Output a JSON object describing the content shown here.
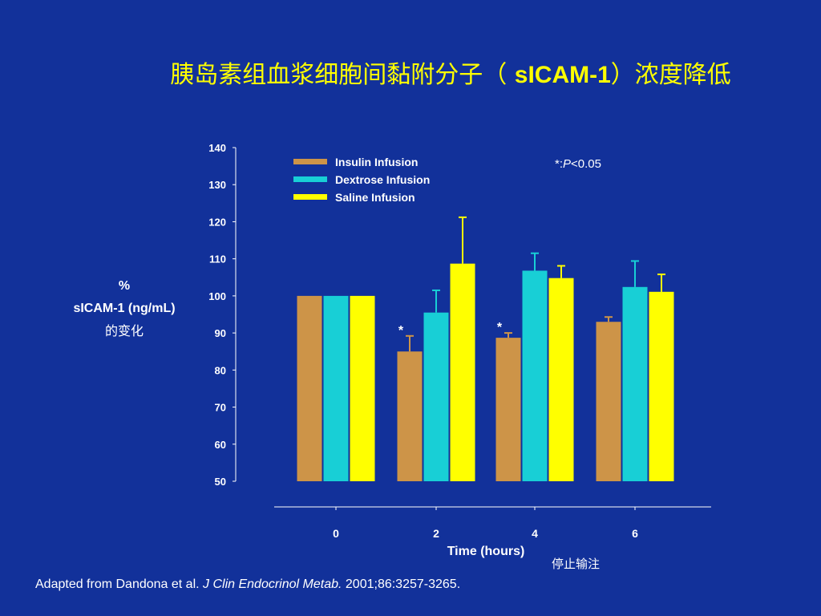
{
  "slide": {
    "title_cn_prefix": "胰岛素组血浆细胞间黏附分子（ ",
    "title_bold": "sICAM-1",
    "title_cn_suffix": "）浓度降低",
    "ylabel_line1": "%",
    "ylabel_line2": "sICAM-1 (ng/mL)",
    "ylabel_line3": "的变化",
    "pvalue_prefix": "*:",
    "pvalue_p": "P",
    "pvalue_rest": "<0.05",
    "stop_label": "停止输注",
    "footnote_pre": "Adapted from Dandona et al. ",
    "footnote_journal": "J Clin Endocrinol Metab.",
    "footnote_post": " 2001;86:3257-3265."
  },
  "colors": {
    "background": "#12319a",
    "title": "#ffff00",
    "insulin": "#cd9448",
    "dextrose": "#18cfd6",
    "saline": "#ffff00"
  },
  "chart_data": {
    "type": "bar",
    "xlabel": "Time (hours)",
    "ylabel": "% sICAM-1 (ng/mL) 的变化",
    "categories": [
      "0",
      "2",
      "4",
      "6"
    ],
    "ylim": [
      50,
      140
    ],
    "yticks": [
      50,
      60,
      70,
      80,
      90,
      100,
      110,
      120,
      130,
      140
    ],
    "legend_position": "top-center",
    "series": [
      {
        "name": "Insulin Infusion",
        "color": "#cd9448",
        "values": [
          100,
          85,
          88.7,
          93
        ],
        "errors": [
          0,
          4.2,
          1.3,
          1.3
        ],
        "significant": [
          false,
          true,
          true,
          false
        ]
      },
      {
        "name": "Dextrose Infusion",
        "color": "#18cfd6",
        "values": [
          100,
          95.5,
          106.8,
          102.4
        ],
        "errors": [
          0,
          6.0,
          4.7,
          7.0
        ],
        "significant": [
          false,
          false,
          false,
          false
        ]
      },
      {
        "name": "Saline Infusion",
        "color": "#ffff00",
        "values": [
          100,
          108.7,
          104.8,
          101.1
        ],
        "errors": [
          0,
          12.5,
          3.3,
          4.7
        ],
        "significant": [
          false,
          false,
          false,
          false
        ]
      }
    ],
    "significance_marker": "*"
  }
}
